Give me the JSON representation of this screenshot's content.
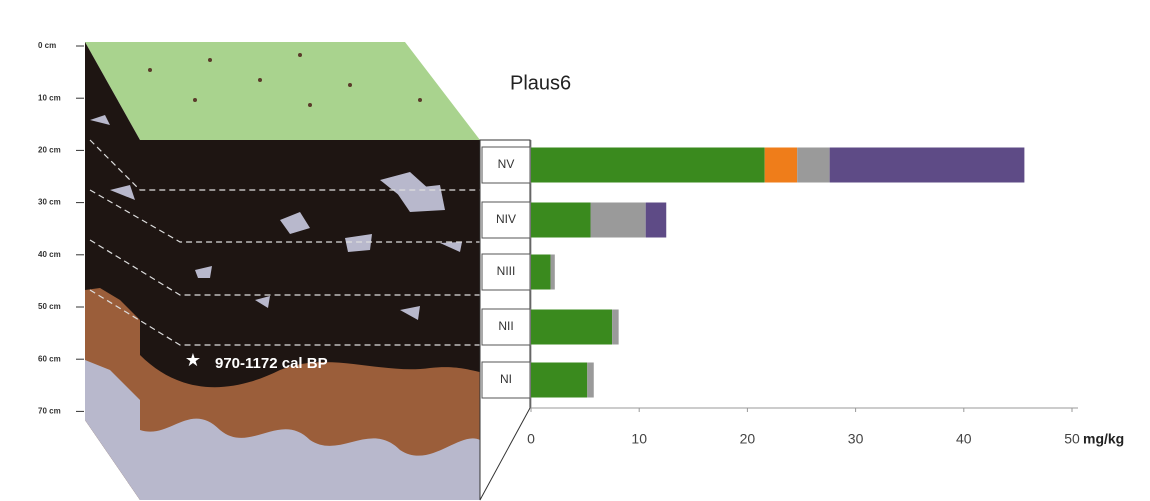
{
  "chart_data": {
    "type": "bar",
    "orientation": "horizontal",
    "stacked": true,
    "title": "Plaus6",
    "x_label": "mg/kg",
    "categories": [
      "NV",
      "NIV",
      "NIII",
      "NII",
      "NI"
    ],
    "series": [
      {
        "color": "#3a8a1e",
        "values": [
          21.6,
          5.5,
          1.8,
          7.5,
          5.2
        ]
      },
      {
        "color": "#ef7d1a",
        "values": [
          3.0,
          0,
          0,
          0,
          0
        ]
      },
      {
        "color": "#9a9a9a",
        "values": [
          3.0,
          5.1,
          0.4,
          0.6,
          0.6
        ]
      },
      {
        "color": "#5e4b86",
        "values": [
          18.0,
          1.9,
          0,
          0,
          0
        ]
      }
    ],
    "xlim": [
      0,
      50
    ],
    "xticks": [
      0,
      10,
      20,
      30,
      40,
      50
    ]
  },
  "profile": {
    "depth_labels": [
      "0 cm",
      "10 cm",
      "20 cm",
      "30 cm",
      "40 cm",
      "50 cm",
      "60 cm",
      "70 cm"
    ],
    "annotation": "970-1172 cal BP"
  }
}
